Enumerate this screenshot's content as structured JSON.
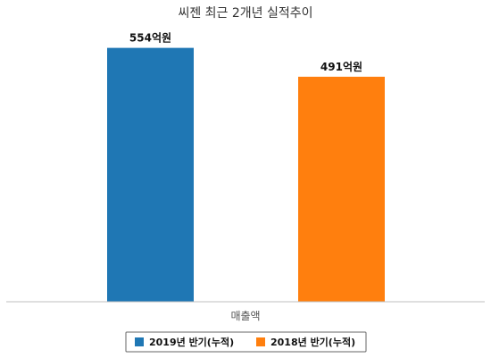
{
  "chart_data": {
    "type": "bar",
    "title": "씨젠 최근 2개년 실적추이",
    "categories": [
      "매출액"
    ],
    "series": [
      {
        "name": "2019년 반기(누적)",
        "values": [
          554
        ],
        "data_label": "554억원",
        "color": "#1f77b4"
      },
      {
        "name": "2018년 반기(누적)",
        "values": [
          491
        ],
        "data_label": "491억원",
        "color": "#ff7f0e"
      }
    ],
    "xlabel": "",
    "ylabel": "",
    "ylim": [
      0,
      600
    ],
    "grid": false,
    "legend": "bottom"
  }
}
